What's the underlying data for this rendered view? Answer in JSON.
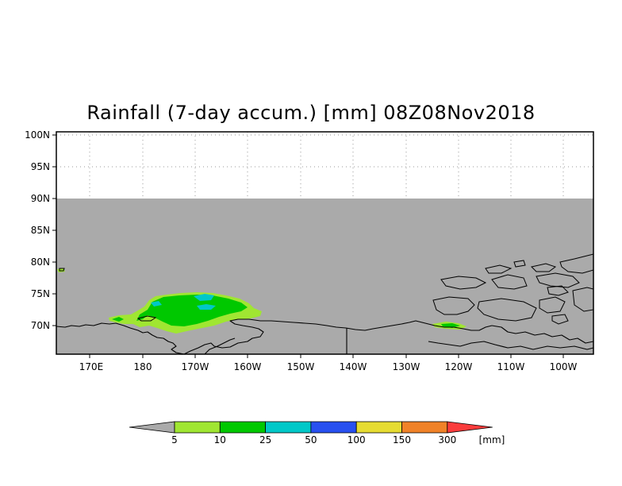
{
  "title": "Rainfall (7-day accum.) [mm] 08Z08Nov2018",
  "map": {
    "lon_range": [
      165,
      255
    ],
    "lat_range": [
      65.5,
      100
    ],
    "valid_lat_max": 90,
    "no_data_color": "#aaaaaa",
    "lat_ticks": [
      "100N",
      "95N",
      "90N",
      "85N",
      "80N",
      "75N",
      "70N"
    ],
    "lon_ticks": [
      "170E",
      "180",
      "170W",
      "160W",
      "150W",
      "140W",
      "130W",
      "120W",
      "110W",
      "100W"
    ]
  },
  "legend": {
    "labels": [
      "5",
      "10",
      "25",
      "50",
      "100",
      "150",
      "300"
    ],
    "unit": "[mm]",
    "colors": [
      "#aaaaaa",
      "#a0e632",
      "#00c800",
      "#00c8c8",
      "#2850f0",
      "#e6dc32",
      "#f08228",
      "#fa3c3c"
    ]
  }
}
